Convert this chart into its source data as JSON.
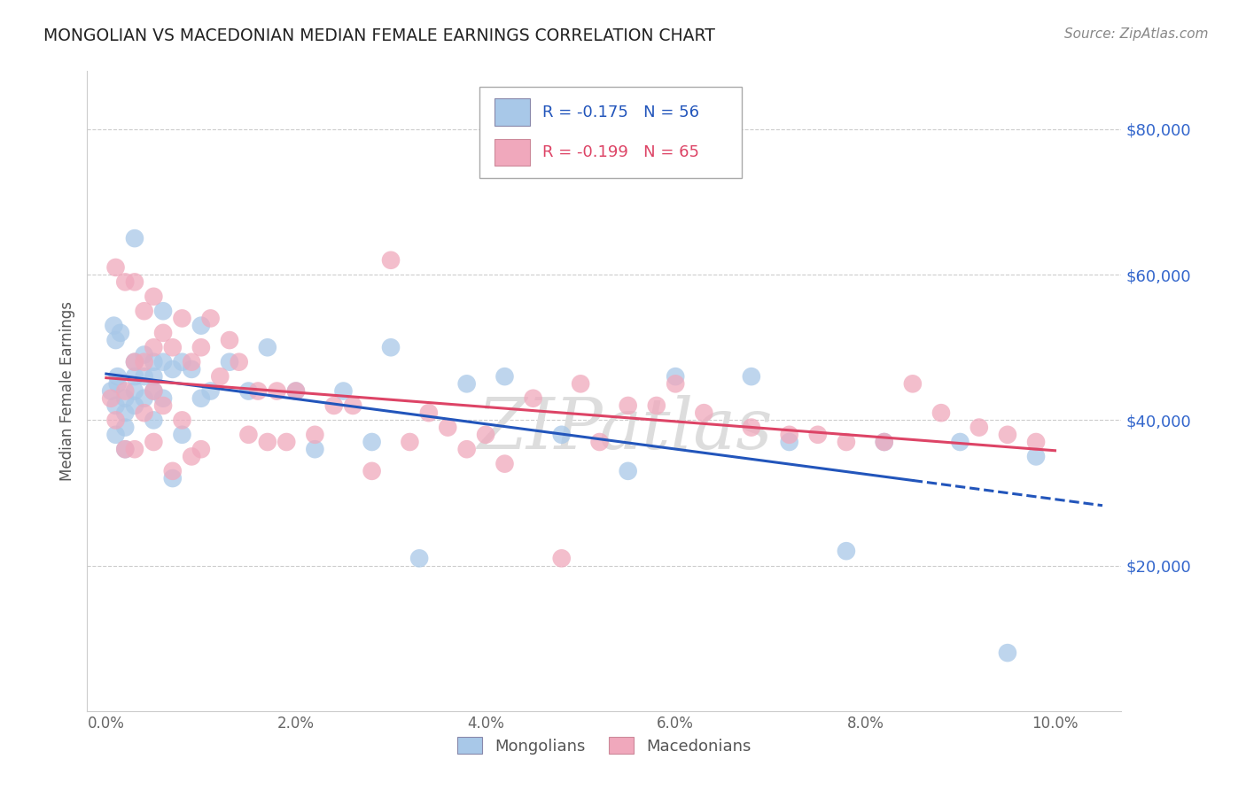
{
  "title": "MONGOLIAN VS MACEDONIAN MEDIAN FEMALE EARNINGS CORRELATION CHART",
  "source": "Source: ZipAtlas.com",
  "ylabel": "Median Female Earnings",
  "xlabel_ticks": [
    "0.0%",
    "2.0%",
    "4.0%",
    "6.0%",
    "8.0%",
    "10.0%"
  ],
  "xlabel_vals": [
    0.0,
    0.02,
    0.04,
    0.06,
    0.08,
    0.1
  ],
  "ytick_labels": [
    "$20,000",
    "$40,000",
    "$60,000",
    "$80,000"
  ],
  "ytick_vals": [
    20000,
    40000,
    60000,
    80000
  ],
  "ylim": [
    0,
    88000
  ],
  "xlim": [
    -0.002,
    0.107
  ],
  "mongolian_R": "-0.175",
  "mongolian_N": "56",
  "macedonian_R": "-0.199",
  "macedonian_N": "65",
  "mongolian_color": "#a8c8e8",
  "macedonian_color": "#f0a8bc",
  "mongolian_line_color": "#2255bb",
  "macedonian_line_color": "#dd4466",
  "watermark": "ZIPatlas",
  "mongolian_x": [
    0.0005,
    0.0008,
    0.001,
    0.001,
    0.001,
    0.0012,
    0.0012,
    0.0015,
    0.002,
    0.002,
    0.002,
    0.002,
    0.003,
    0.003,
    0.003,
    0.003,
    0.003,
    0.004,
    0.004,
    0.004,
    0.005,
    0.005,
    0.005,
    0.005,
    0.006,
    0.006,
    0.006,
    0.007,
    0.007,
    0.008,
    0.008,
    0.009,
    0.01,
    0.01,
    0.011,
    0.013,
    0.015,
    0.017,
    0.02,
    0.022,
    0.025,
    0.028,
    0.03,
    0.033,
    0.038,
    0.042,
    0.048,
    0.055,
    0.06,
    0.068,
    0.072,
    0.078,
    0.082,
    0.09,
    0.095,
    0.098
  ],
  "mongolian_y": [
    44000,
    53000,
    51000,
    42000,
    38000,
    46000,
    45000,
    52000,
    43000,
    41000,
    39000,
    36000,
    65000,
    48000,
    46000,
    44000,
    42000,
    49000,
    46000,
    43000,
    48000,
    46000,
    44000,
    40000,
    55000,
    48000,
    43000,
    47000,
    32000,
    48000,
    38000,
    47000,
    53000,
    43000,
    44000,
    48000,
    44000,
    50000,
    44000,
    36000,
    44000,
    37000,
    50000,
    21000,
    45000,
    46000,
    38000,
    33000,
    46000,
    46000,
    37000,
    22000,
    37000,
    37000,
    8000,
    35000
  ],
  "macedonian_x": [
    0.0005,
    0.001,
    0.001,
    0.002,
    0.002,
    0.002,
    0.003,
    0.003,
    0.003,
    0.004,
    0.004,
    0.004,
    0.005,
    0.005,
    0.005,
    0.005,
    0.006,
    0.006,
    0.007,
    0.007,
    0.008,
    0.008,
    0.009,
    0.009,
    0.01,
    0.01,
    0.011,
    0.012,
    0.013,
    0.014,
    0.015,
    0.016,
    0.017,
    0.018,
    0.019,
    0.02,
    0.022,
    0.024,
    0.026,
    0.028,
    0.03,
    0.032,
    0.034,
    0.036,
    0.038,
    0.04,
    0.042,
    0.045,
    0.048,
    0.05,
    0.052,
    0.055,
    0.058,
    0.06,
    0.063,
    0.068,
    0.072,
    0.075,
    0.078,
    0.082,
    0.085,
    0.088,
    0.092,
    0.095,
    0.098
  ],
  "macedonian_y": [
    43000,
    61000,
    40000,
    59000,
    44000,
    36000,
    59000,
    48000,
    36000,
    55000,
    48000,
    41000,
    57000,
    50000,
    44000,
    37000,
    52000,
    42000,
    50000,
    33000,
    54000,
    40000,
    48000,
    35000,
    50000,
    36000,
    54000,
    46000,
    51000,
    48000,
    38000,
    44000,
    37000,
    44000,
    37000,
    44000,
    38000,
    42000,
    42000,
    33000,
    62000,
    37000,
    41000,
    39000,
    36000,
    38000,
    34000,
    43000,
    21000,
    45000,
    37000,
    42000,
    42000,
    45000,
    41000,
    39000,
    38000,
    38000,
    37000,
    37000,
    45000,
    41000,
    39000,
    38000,
    37000
  ]
}
